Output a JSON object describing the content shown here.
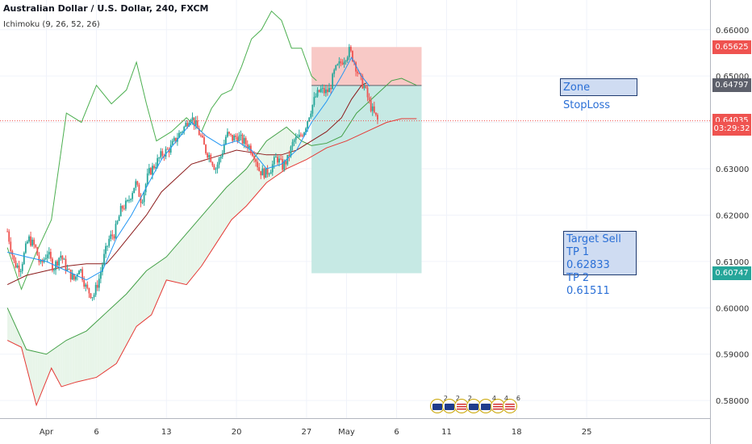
{
  "header": {
    "title": "Australian Dollar / U.S. Dollar, 240, FXCM",
    "indicator": "Ichimoku (9, 26, 52, 26)"
  },
  "annotations": {
    "stoploss": "Zone StopLoss",
    "target_lines": [
      "Target Sell",
      "TP 1 0.62833",
      "TP 2 0.61511"
    ]
  },
  "price_badges": [
    {
      "label": "0.65625",
      "value": 0.65625,
      "color": "#ef5350"
    },
    {
      "label": "0.64797",
      "value": 0.64797,
      "color": "#5d606b"
    },
    {
      "label": "0.64035",
      "value": 0.64035,
      "color": "#ef5350"
    },
    {
      "label": "03:29:32",
      "value": 0.6387,
      "color": "#ef5350"
    },
    {
      "label": "0.60747",
      "value": 0.60747,
      "color": "#26a69a"
    }
  ],
  "events": [
    {
      "count": "2",
      "flag": "au"
    },
    {
      "count": "2",
      "flag": "au"
    },
    {
      "count": "2",
      "flag": "us"
    },
    {
      "count": "",
      "flag": "au"
    },
    {
      "count": "4",
      "flag": "au"
    },
    {
      "count": "4",
      "flag": "us"
    },
    {
      "count": "6",
      "flag": "us"
    }
  ],
  "colors": {
    "up": "#26a69a",
    "down": "#ef5350",
    "tenkan": "#2196f3",
    "kijun": "#8b1a1a",
    "chikou": "#4caf50",
    "spanA": "#43a047",
    "spanB": "#e53935",
    "cloud_up": "#e8f5e9",
    "cloud_down": "#fde8e8",
    "pos_stop": "#f8c9c6",
    "pos_target": "#c6e9e4",
    "axis_text": "#333333",
    "grid": "#f0f3fa"
  },
  "chart_data": {
    "type": "candlestick",
    "title": "Australian Dollar / U.S. Dollar, 240, FXCM",
    "y_range": [
      0.5762,
      0.6664
    ],
    "y_ticks": [
      0.58,
      0.59,
      0.6,
      0.61,
      0.62,
      0.63,
      0.64,
      0.65,
      0.66
    ],
    "y_tick_labels": [
      "0.58000",
      "0.59000",
      "0.60000",
      "0.61000",
      "0.62000",
      "0.63000",
      "0.64000",
      "0.65000",
      "0.66000"
    ],
    "x_ticks": [
      {
        "label": "Apr",
        "day": 0
      },
      {
        "label": "6",
        "day": 5
      },
      {
        "label": "13",
        "day": 12
      },
      {
        "label": "20",
        "day": 19
      },
      {
        "label": "27",
        "day": 26
      },
      {
        "label": "May",
        "day": 30
      },
      {
        "label": "6",
        "day": 35
      },
      {
        "label": "11",
        "day": 40
      },
      {
        "label": "18",
        "day": 47
      },
      {
        "label": "25",
        "day": 54
      }
    ],
    "close_path": [
      [
        -3.9,
        0.6165
      ],
      [
        -3.2,
        0.6095
      ],
      [
        -2.6,
        0.6085
      ],
      [
        -1.8,
        0.615
      ],
      [
        -1.1,
        0.613
      ],
      [
        -0.6,
        0.609
      ],
      [
        0.1,
        0.612
      ],
      [
        0.7,
        0.6085
      ],
      [
        1.4,
        0.6115
      ],
      [
        2.1,
        0.608
      ],
      [
        2.8,
        0.606
      ],
      [
        3.3,
        0.609
      ],
      [
        4.0,
        0.604
      ],
      [
        4.7,
        0.6025
      ],
      [
        5.3,
        0.6065
      ],
      [
        5.7,
        0.6105
      ],
      [
        6.3,
        0.615
      ],
      [
        6.8,
        0.616
      ],
      [
        7.5,
        0.6215
      ],
      [
        8.1,
        0.6225
      ],
      [
        8.9,
        0.627
      ],
      [
        9.5,
        0.623
      ],
      [
        10.2,
        0.629
      ],
      [
        10.9,
        0.631
      ],
      [
        11.5,
        0.633
      ],
      [
        12.4,
        0.6345
      ],
      [
        13.1,
        0.637
      ],
      [
        13.8,
        0.639
      ],
      [
        14.4,
        0.6415
      ],
      [
        14.9,
        0.6395
      ],
      [
        15.4,
        0.637
      ],
      [
        15.9,
        0.634
      ],
      [
        16.4,
        0.6325
      ],
      [
        16.9,
        0.63
      ],
      [
        17.5,
        0.633
      ],
      [
        18.0,
        0.6375
      ],
      [
        18.6,
        0.6365
      ],
      [
        19.1,
        0.637
      ],
      [
        19.6,
        0.636
      ],
      [
        20.2,
        0.635
      ],
      [
        20.8,
        0.633
      ],
      [
        21.3,
        0.6295
      ],
      [
        21.9,
        0.629
      ],
      [
        22.4,
        0.63
      ],
      [
        23.0,
        0.6325
      ],
      [
        23.6,
        0.6305
      ],
      [
        24.1,
        0.632
      ],
      [
        24.7,
        0.636
      ],
      [
        25.2,
        0.6365
      ],
      [
        25.8,
        0.6385
      ],
      [
        26.3,
        0.642
      ],
      [
        26.9,
        0.6455
      ],
      [
        27.4,
        0.647
      ],
      [
        27.9,
        0.6465
      ],
      [
        28.3,
        0.647
      ],
      [
        28.8,
        0.651
      ],
      [
        29.3,
        0.6525
      ],
      [
        29.8,
        0.654
      ],
      [
        30.3,
        0.6555
      ],
      [
        30.8,
        0.653
      ],
      [
        31.3,
        0.6495
      ],
      [
        31.8,
        0.6475
      ],
      [
        32.3,
        0.644
      ],
      [
        32.7,
        0.642
      ],
      [
        33.1,
        0.6404
      ]
    ],
    "tenkan": [
      [
        -3.9,
        0.612
      ],
      [
        -2.0,
        0.611
      ],
      [
        0.0,
        0.61
      ],
      [
        2.0,
        0.608
      ],
      [
        4.0,
        0.606
      ],
      [
        5.6,
        0.608
      ],
      [
        7.0,
        0.615
      ],
      [
        8.5,
        0.62
      ],
      [
        10.0,
        0.626
      ],
      [
        11.5,
        0.632
      ],
      [
        13.0,
        0.636
      ],
      [
        14.5,
        0.64
      ],
      [
        16.0,
        0.637
      ],
      [
        17.5,
        0.635
      ],
      [
        19.0,
        0.636
      ],
      [
        20.5,
        0.634
      ],
      [
        22.0,
        0.63
      ],
      [
        23.5,
        0.631
      ],
      [
        25.0,
        0.634
      ],
      [
        26.5,
        0.64
      ],
      [
        28.0,
        0.6445
      ],
      [
        29.5,
        0.65
      ],
      [
        30.5,
        0.654
      ],
      [
        31.5,
        0.65
      ],
      [
        32.3,
        0.6478
      ]
    ],
    "kijun": [
      [
        -3.9,
        0.605
      ],
      [
        -2.0,
        0.607
      ],
      [
        0.0,
        0.608
      ],
      [
        2.0,
        0.609
      ],
      [
        4.0,
        0.6095
      ],
      [
        6.0,
        0.6095
      ],
      [
        7.0,
        0.612
      ],
      [
        8.5,
        0.616
      ],
      [
        10.0,
        0.62
      ],
      [
        11.5,
        0.625
      ],
      [
        13.0,
        0.628
      ],
      [
        14.5,
        0.631
      ],
      [
        16.0,
        0.632
      ],
      [
        17.5,
        0.633
      ],
      [
        19.0,
        0.634
      ],
      [
        20.5,
        0.6335
      ],
      [
        22.0,
        0.633
      ],
      [
        23.5,
        0.633
      ],
      [
        25.0,
        0.634
      ],
      [
        26.5,
        0.636
      ],
      [
        28.0,
        0.638
      ],
      [
        29.5,
        0.641
      ],
      [
        30.5,
        0.645
      ],
      [
        31.5,
        0.648
      ],
      [
        32.0,
        0.6485
      ]
    ],
    "span_a": [
      [
        -3.9,
        0.6
      ],
      [
        -2.0,
        0.591
      ],
      [
        0.0,
        0.59
      ],
      [
        2.0,
        0.593
      ],
      [
        4.0,
        0.595
      ],
      [
        6.0,
        0.599
      ],
      [
        8.0,
        0.603
      ],
      [
        10.0,
        0.608
      ],
      [
        12.0,
        0.611
      ],
      [
        14.0,
        0.616
      ],
      [
        16.0,
        0.621
      ],
      [
        18.0,
        0.626
      ],
      [
        20.0,
        0.63
      ],
      [
        22.0,
        0.636
      ],
      [
        24.0,
        0.639
      ],
      [
        25.5,
        0.636
      ],
      [
        26.5,
        0.635
      ],
      [
        28.0,
        0.6355
      ],
      [
        29.5,
        0.637
      ],
      [
        31.0,
        0.642
      ],
      [
        33.0,
        0.646
      ],
      [
        34.5,
        0.649
      ],
      [
        35.5,
        0.6495
      ],
      [
        36.5,
        0.6485
      ],
      [
        37.0,
        0.648
      ]
    ],
    "span_b": [
      [
        -3.9,
        0.593
      ],
      [
        -2.5,
        0.5915
      ],
      [
        -1.0,
        0.579
      ],
      [
        0.5,
        0.587
      ],
      [
        1.5,
        0.583
      ],
      [
        3.0,
        0.584
      ],
      [
        5.0,
        0.585
      ],
      [
        7.0,
        0.588
      ],
      [
        9.0,
        0.596
      ],
      [
        10.5,
        0.5985
      ],
      [
        12.0,
        0.606
      ],
      [
        14.0,
        0.605
      ],
      [
        15.5,
        0.609
      ],
      [
        17.0,
        0.614
      ],
      [
        18.5,
        0.619
      ],
      [
        20.0,
        0.622
      ],
      [
        22.0,
        0.627
      ],
      [
        24.0,
        0.63
      ],
      [
        26.0,
        0.632
      ],
      [
        28.0,
        0.6345
      ],
      [
        30.0,
        0.636
      ],
      [
        32.0,
        0.638
      ],
      [
        34.0,
        0.64
      ],
      [
        35.5,
        0.6408
      ],
      [
        37.0,
        0.6408
      ]
    ],
    "chikou": [
      [
        -3.9,
        0.613
      ],
      [
        -2.5,
        0.604
      ],
      [
        -1.0,
        0.612
      ],
      [
        0.5,
        0.619
      ],
      [
        2.0,
        0.642
      ],
      [
        3.5,
        0.64
      ],
      [
        5.0,
        0.648
      ],
      [
        6.5,
        0.644
      ],
      [
        8.0,
        0.647
      ],
      [
        9.0,
        0.653
      ],
      [
        10.0,
        0.644
      ],
      [
        11.0,
        0.636
      ],
      [
        12.5,
        0.638
      ],
      [
        14.0,
        0.641
      ],
      [
        15.5,
        0.638
      ],
      [
        16.5,
        0.643
      ],
      [
        17.5,
        0.646
      ],
      [
        18.5,
        0.647
      ],
      [
        19.5,
        0.652
      ],
      [
        20.5,
        0.658
      ],
      [
        21.5,
        0.66
      ],
      [
        22.5,
        0.664
      ],
      [
        23.5,
        0.662
      ],
      [
        24.5,
        0.656
      ],
      [
        25.5,
        0.656
      ],
      [
        26.5,
        0.65
      ],
      [
        27.0,
        0.649
      ]
    ],
    "position": {
      "type": "short",
      "start_day": 26.5,
      "end_day": 37.5,
      "entry": 0.64797,
      "stop": 0.65625,
      "target": 0.60747,
      "current_price": 0.64035
    }
  }
}
